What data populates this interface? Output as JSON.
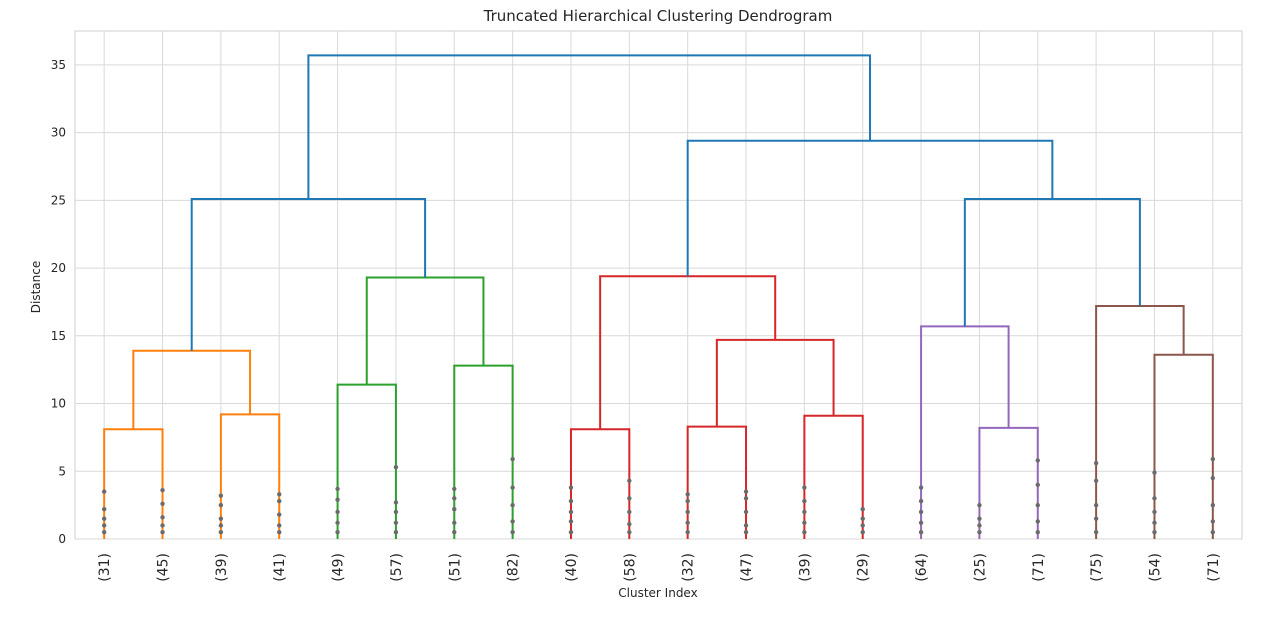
{
  "chart_data": {
    "type": "dendrogram",
    "title": "Truncated Hierarchical Clustering Dendrogram",
    "xlabel": "Cluster Index",
    "ylabel": "Distance",
    "ylim": [
      0,
      37.5
    ],
    "yticks": [
      0,
      5,
      10,
      15,
      20,
      25,
      30,
      35
    ],
    "grid": true,
    "leaf_labels": [
      "(31)",
      "(45)",
      "(39)",
      "(41)",
      "(49)",
      "(57)",
      "(51)",
      "(82)",
      "(40)",
      "(58)",
      "(32)",
      "(47)",
      "(39)",
      "(29)",
      "(64)",
      "(25)",
      "(71)",
      "(75)",
      "(54)",
      "(71)"
    ],
    "colors": {
      "root": "#1f77b4",
      "cluster_1": "#ff7f0e",
      "cluster_2": "#2ca02c",
      "cluster_3": "#d62728",
      "cluster_4": "#9467bd",
      "cluster_5": "#8c564b",
      "dots": "#6b6b6b"
    },
    "merges": [
      {
        "left": 0,
        "right": 1,
        "distance": 8.1,
        "color": "cluster_1"
      },
      {
        "left": 2,
        "right": 3,
        "distance": 9.2,
        "color": "cluster_1"
      },
      {
        "left": 20,
        "right": 21,
        "distance": 13.9,
        "color": "cluster_1"
      },
      {
        "left": 4,
        "right": 5,
        "distance": 11.4,
        "color": "cluster_2"
      },
      {
        "left": 6,
        "right": 7,
        "distance": 12.8,
        "color": "cluster_2"
      },
      {
        "left": 23,
        "right": 24,
        "distance": 19.3,
        "color": "cluster_2"
      },
      {
        "left": 22,
        "right": 25,
        "distance": 25.1,
        "color": "root"
      },
      {
        "left": 8,
        "right": 9,
        "distance": 8.1,
        "color": "cluster_3"
      },
      {
        "left": 10,
        "right": 11,
        "distance": 8.3,
        "color": "cluster_3"
      },
      {
        "left": 12,
        "right": 13,
        "distance": 9.1,
        "color": "cluster_3"
      },
      {
        "left": 28,
        "right": 29,
        "distance": 14.7,
        "color": "cluster_3"
      },
      {
        "left": 27,
        "right": 30,
        "distance": 19.4,
        "color": "cluster_3"
      },
      {
        "left": 15,
        "right": 16,
        "distance": 8.2,
        "color": "cluster_4"
      },
      {
        "left": 14,
        "right": 32,
        "distance": 15.7,
        "color": "cluster_4"
      },
      {
        "left": 18,
        "right": 19,
        "distance": 13.6,
        "color": "cluster_5"
      },
      {
        "left": 17,
        "right": 34,
        "distance": 17.2,
        "color": "cluster_5"
      },
      {
        "left": 33,
        "right": 35,
        "distance": 25.1,
        "color": "root"
      },
      {
        "left": 31,
        "right": 36,
        "distance": 29.4,
        "color": "root"
      },
      {
        "left": 26,
        "right": 37,
        "distance": 35.7,
        "color": "root"
      }
    ],
    "leaf_dots": [
      [
        0.5,
        1.0,
        1.5,
        2.2,
        3.5
      ],
      [
        0.5,
        1.0,
        1.6,
        2.6,
        3.6
      ],
      [
        0.5,
        1.0,
        1.5,
        2.5,
        3.2
      ],
      [
        0.5,
        1.0,
        1.8,
        2.8,
        3.3
      ],
      [
        0.5,
        1.2,
        2.0,
        2.9,
        3.7
      ],
      [
        0.5,
        1.2,
        2.0,
        2.7,
        5.3
      ],
      [
        0.5,
        1.2,
        2.2,
        3.0,
        3.7
      ],
      [
        0.5,
        1.3,
        2.5,
        3.8,
        5.9
      ],
      [
        0.5,
        1.3,
        2.0,
        2.8,
        3.8
      ],
      [
        0.5,
        1.1,
        2.0,
        3.0,
        4.3
      ],
      [
        0.5,
        1.2,
        2.0,
        2.8,
        3.3
      ],
      [
        0.5,
        1.0,
        2.0,
        3.0,
        3.5
      ],
      [
        0.5,
        1.2,
        2.0,
        2.8,
        3.8
      ],
      [
        0.5,
        1.0,
        1.5,
        2.2
      ],
      [
        0.5,
        1.2,
        2.0,
        2.8,
        3.8
      ],
      [
        0.5,
        1.0,
        1.5,
        2.5
      ],
      [
        0.5,
        1.3,
        2.5,
        4.0,
        5.8
      ],
      [
        0.5,
        1.5,
        2.5,
        4.3,
        5.6
      ],
      [
        0.5,
        1.2,
        2.0,
        3.0,
        4.9
      ],
      [
        0.5,
        1.3,
        2.5,
        4.5,
        5.9
      ]
    ]
  }
}
